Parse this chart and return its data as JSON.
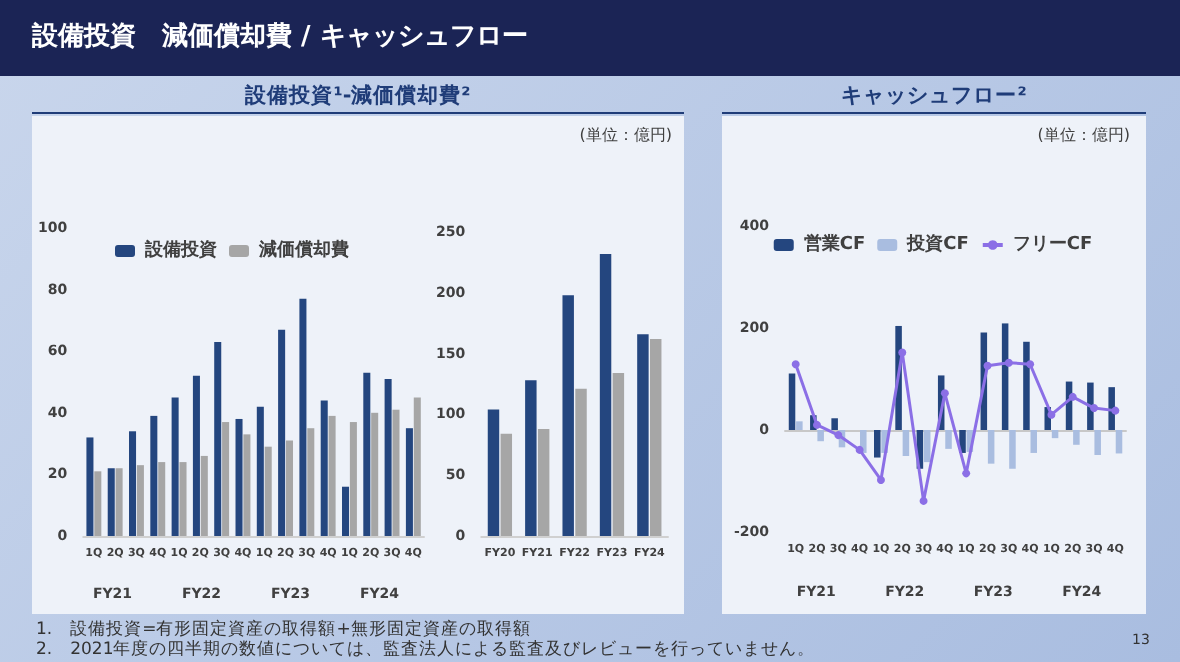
{
  "chart_data": [
    {
      "type": "other",
      "title": "設備投資　減価償却費 / キャッシュフロー",
      "annotations": [
        "1.　設備投資=有形固定資産の取得額+無形固定資産の取得額",
        "2.　2021年度の四半期の数値については、監査法人による監査及びレビューを行っていません。",
        "13"
      ]
    },
    {
      "type": "bar",
      "title": "設備投資¹-減価償却費²",
      "categories": [
        "1Q",
        "2Q",
        "3Q",
        "4Q",
        "1Q",
        "2Q",
        "3Q",
        "4Q",
        "1Q",
        "2Q",
        "3Q",
        "4Q",
        "1Q",
        "2Q",
        "3Q",
        "4Q"
      ],
      "series": [
        {
          "name": "設備投資",
          "color": "#24467f",
          "values": [
            32,
            22,
            34,
            39,
            45,
            52,
            63,
            38,
            42,
            67,
            77,
            44,
            16,
            53,
            51,
            35
          ]
        },
        {
          "name": "減価償却費",
          "color": "#a6a6a6",
          "values": [
            21,
            22,
            23,
            24,
            24,
            26,
            37,
            33,
            29,
            31,
            35,
            39,
            37,
            40,
            41,
            45
          ]
        }
      ],
      "ylim": [
        0,
        100
      ],
      "yticks": [
        0,
        20,
        40,
        60,
        80,
        100
      ],
      "legend": "top",
      "annotations": [
        "FY21",
        "FY22",
        "FY23",
        "FY24"
      ]
    },
    {
      "type": "bar",
      "categories": [
        "FY20",
        "FY21",
        "FY22",
        "FY23",
        "FY24"
      ],
      "series": [
        {
          "color": "#24467f",
          "values": [
            104,
            128,
            198,
            232,
            166
          ]
        },
        {
          "color": "#a6a6a6",
          "values": [
            84,
            88,
            121,
            134,
            162
          ]
        }
      ],
      "ylim": [
        0,
        250
      ],
      "yticks": [
        0,
        50,
        100,
        150,
        200,
        250
      ],
      "annotations": [
        "(単位：億円)"
      ]
    },
    {
      "type": "bar",
      "title": "キャッシュフロー²",
      "categories": [
        "1Q",
        "2Q",
        "3Q",
        "4Q",
        "1Q",
        "2Q",
        "3Q",
        "4Q",
        "1Q",
        "2Q",
        "3Q",
        "4Q",
        "1Q",
        "2Q",
        "3Q",
        "4Q"
      ],
      "series": [
        {
          "name": "営業CF",
          "color": "#24467f",
          "values": [
            111,
            29,
            23,
            0,
            -54,
            204,
            -76,
            107,
            -45,
            191,
            209,
            173,
            45,
            95,
            93,
            84
          ]
        },
        {
          "name": "投資CF",
          "color": "#a9bde0",
          "values": [
            17,
            -22,
            -34,
            -45,
            -45,
            -51,
            -63,
            -37,
            -43,
            -66,
            -76,
            -45,
            -16,
            -29,
            -49,
            -46
          ]
        },
        {
          "name": "フリーCF",
          "type": "line",
          "color": "#8b6fe6",
          "values": [
            129,
            10,
            -10,
            -39,
            -98,
            152,
            -139,
            72,
            -85,
            126,
            132,
            129,
            30,
            65,
            43,
            38
          ]
        }
      ],
      "ylim": [
        -200,
        400
      ],
      "yticks": [
        -200,
        0,
        200,
        400
      ],
      "legend": "top",
      "marker": "circle",
      "annotations": [
        "(単位：億円)",
        "FY21",
        "FY22",
        "FY23",
        "FY24"
      ]
    }
  ]
}
